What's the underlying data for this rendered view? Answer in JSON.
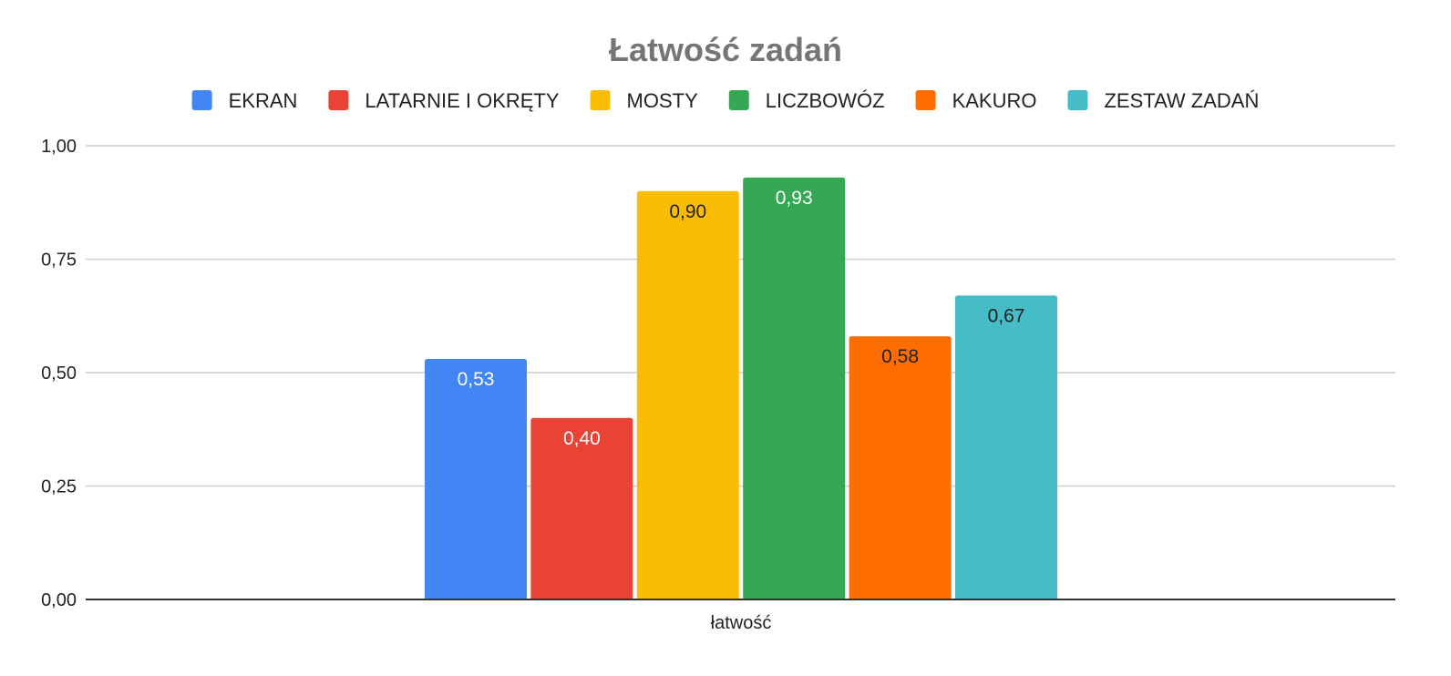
{
  "chart_data": {
    "type": "bar",
    "title": "Łatwość zadań",
    "categories": [
      "łatwość"
    ],
    "series": [
      {
        "name": "EKRAN",
        "values": [
          0.53
        ],
        "label": "0,53",
        "color": "#4285f4",
        "label_color": "#ffffff"
      },
      {
        "name": "LATARNIE I OKRĘTY",
        "values": [
          0.4
        ],
        "label": "0,40",
        "color": "#ea4335",
        "label_color": "#ffffff"
      },
      {
        "name": "MOSTY",
        "values": [
          0.9
        ],
        "label": "0,90",
        "color": "#fbbc04",
        "label_color": "#222222"
      },
      {
        "name": "LICZBOWÓZ",
        "values": [
          0.93
        ],
        "label": "0,93",
        "color": "#34a853",
        "label_color": "#ffffff"
      },
      {
        "name": "KAKURO",
        "values": [
          0.58
        ],
        "label": "0,58",
        "color": "#ff6d01",
        "label_color": "#222222"
      },
      {
        "name": "ZESTAW ZADAŃ",
        "values": [
          0.67
        ],
        "label": "0,67",
        "color": "#46bdc6",
        "label_color": "#222222"
      }
    ],
    "ylim": [
      0,
      1
    ],
    "yticks": [
      {
        "value": 0,
        "label": "0,00"
      },
      {
        "value": 0.25,
        "label": "0,25"
      },
      {
        "value": 0.5,
        "label": "0,50"
      },
      {
        "value": 0.75,
        "label": "0,75"
      },
      {
        "value": 1,
        "label": "1,00"
      }
    ],
    "grid": true,
    "legend_position": "top-center"
  }
}
